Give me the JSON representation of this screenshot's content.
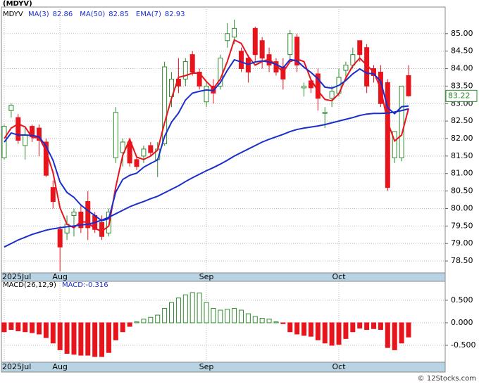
{
  "chart_data": [
    {
      "type": "candlestick",
      "title": "(MDYV)",
      "symbol": "MDYV",
      "categories": [
        "2025Jul",
        null,
        null,
        null,
        null,
        null,
        null,
        null,
        "Aug",
        null,
        null,
        null,
        null,
        null,
        null,
        null,
        null,
        null,
        null,
        null,
        null,
        null,
        null,
        null,
        null,
        null,
        null,
        null,
        null,
        "Sep",
        null,
        null,
        null,
        null,
        null,
        null,
        null,
        null,
        null,
        null,
        null,
        null,
        null,
        null,
        null,
        null,
        null,
        null,
        "Oct",
        null,
        null,
        null,
        null,
        null,
        null,
        null,
        null,
        null,
        null
      ],
      "open": [
        81.45,
        82.8,
        82.6,
        81.8,
        82.35,
        82.3,
        81.9,
        80.6,
        79.4,
        79.3,
        79.8,
        79.9,
        80.2,
        79.8,
        79.6,
        79.3,
        81.45,
        81.6,
        81.9,
        81.4,
        81.5,
        81.8,
        81.4,
        81.85,
        83.2,
        83.7,
        83.7,
        84.4,
        83.9,
        83.05,
        83.5,
        83.5,
        84.8,
        84.9,
        84.5,
        84.3,
        85.15,
        84.8,
        84.4,
        84.2,
        84.05,
        84.4,
        84.9,
        83.45,
        83.65,
        83.85,
        82.72,
        83.15,
        83.3,
        83.95,
        84.1,
        84.8,
        84.6,
        84.0,
        83.9,
        83.6,
        81.45,
        81.45,
        83.8
      ],
      "high": [
        82.4,
        83.0,
        82.7,
        82.3,
        82.4,
        82.4,
        82.0,
        80.8,
        79.5,
        79.8,
        80.0,
        80.1,
        80.5,
        79.9,
        79.8,
        80.0,
        82.9,
        82.0,
        82.0,
        81.5,
        81.8,
        81.9,
        81.9,
        84.2,
        83.9,
        84.3,
        84.3,
        84.5,
        84.0,
        83.6,
        83.7,
        84.4,
        85.3,
        85.4,
        84.6,
        84.4,
        85.2,
        84.9,
        84.6,
        84.3,
        84.3,
        85.1,
        85.0,
        83.6,
        83.7,
        84.0,
        82.9,
        83.5,
        84.0,
        84.2,
        84.6,
        84.8,
        84.7,
        84.1,
        84.1,
        83.7,
        82.2,
        83.5,
        84.1
      ],
      "low": [
        81.4,
        82.6,
        81.85,
        81.4,
        81.9,
        81.5,
        80.9,
        80.0,
        78.2,
        79.1,
        79.2,
        79.3,
        79.1,
        79.3,
        79.1,
        79.2,
        81.3,
        81.2,
        81.2,
        81.1,
        81.3,
        81.5,
        80.9,
        81.8,
        82.9,
        83.3,
        83.5,
        83.8,
        83.4,
        82.9,
        83.0,
        83.4,
        84.6,
        84.7,
        83.9,
        83.6,
        84.2,
        84.0,
        83.9,
        83.8,
        83.4,
        84.2,
        83.9,
        83.2,
        83.3,
        82.8,
        82.3,
        82.9,
        83.2,
        83.7,
        84.0,
        84.2,
        83.3,
        83.6,
        82.9,
        80.5,
        81.3,
        81.35,
        83.2
      ],
      "close": [
        82.35,
        82.95,
        81.95,
        82.1,
        82.05,
        81.95,
        80.95,
        80.2,
        78.9,
        79.55,
        79.9,
        79.45,
        79.45,
        79.4,
        79.2,
        79.9,
        82.75,
        81.9,
        81.3,
        81.2,
        81.7,
        81.6,
        81.7,
        84.05,
        83.7,
        83.5,
        84.2,
        83.9,
        83.5,
        83.5,
        83.3,
        84.3,
        85.0,
        85.15,
        84.0,
        83.9,
        84.4,
        84.3,
        84.1,
        83.9,
        83.7,
        85.0,
        84.1,
        83.5,
        83.45,
        83.15,
        82.75,
        83.35,
        83.75,
        84.1,
        84.4,
        84.4,
        83.5,
        83.8,
        83.0,
        80.6,
        82.2,
        83.5,
        83.22
      ],
      "up_color": "#2e8b2e",
      "down_color": "#e8141c",
      "series": [
        {
          "name": "MA(3)",
          "last": 82.86,
          "color": "#e8141c",
          "values": [
            82.0,
            82.3,
            82.42,
            82.33,
            82.03,
            82.03,
            81.65,
            81.03,
            80.02,
            79.55,
            79.45,
            79.63,
            79.6,
            79.43,
            79.35,
            79.5,
            80.62,
            81.52,
            81.98,
            81.47,
            81.4,
            81.5,
            81.67,
            82.45,
            83.15,
            83.75,
            83.8,
            83.87,
            83.87,
            83.63,
            83.43,
            83.7,
            84.2,
            84.82,
            84.72,
            84.35,
            84.1,
            84.2,
            84.27,
            84.1,
            83.9,
            84.2,
            84.27,
            84.2,
            83.68,
            83.37,
            83.12,
            83.08,
            83.28,
            83.73,
            84.08,
            84.3,
            84.1,
            83.9,
            83.43,
            82.47,
            81.93,
            82.1,
            82.86
          ]
        },
        {
          "name": "MA(50)",
          "last": 82.85,
          "color": "#1a2ecc",
          "values": [
            78.9,
            79.0,
            79.1,
            79.18,
            79.26,
            79.32,
            79.38,
            79.42,
            79.45,
            79.48,
            79.5,
            79.53,
            79.55,
            79.6,
            79.67,
            79.75,
            79.85,
            79.95,
            80.05,
            80.13,
            80.2,
            80.28,
            80.35,
            80.45,
            80.55,
            80.65,
            80.77,
            80.88,
            80.98,
            81.08,
            81.17,
            81.27,
            81.38,
            81.5,
            81.6,
            81.7,
            81.8,
            81.9,
            81.98,
            82.05,
            82.12,
            82.2,
            82.26,
            82.3,
            82.33,
            82.36,
            82.4,
            82.45,
            82.5,
            82.55,
            82.6,
            82.66,
            82.7,
            82.72,
            82.72,
            82.73,
            82.76,
            82.8,
            82.85
          ]
        },
        {
          "name": "EMA(7)",
          "last": 82.93,
          "color": "#1a2ecc",
          "values": [
            81.9,
            82.16,
            82.1,
            82.1,
            82.09,
            82.05,
            81.78,
            81.38,
            80.76,
            80.46,
            80.32,
            80.1,
            79.94,
            79.8,
            79.65,
            79.71,
            80.47,
            80.83,
            80.95,
            81.01,
            81.18,
            81.29,
            81.39,
            82.06,
            82.47,
            82.73,
            83.1,
            83.3,
            83.35,
            83.39,
            83.37,
            83.6,
            83.95,
            84.25,
            84.19,
            84.12,
            84.19,
            84.22,
            84.19,
            84.12,
            84.02,
            84.26,
            84.22,
            84.04,
            83.89,
            83.71,
            83.47,
            83.44,
            83.52,
            83.66,
            83.85,
            83.99,
            83.87,
            83.85,
            83.64,
            82.88,
            82.71,
            82.91,
            82.93
          ]
        }
      ],
      "last_price": 83.22,
      "ylim": [
        78.16,
        85.76
      ],
      "yticks": [
        {
          "value": 78.5,
          "label": "78.50"
        },
        {
          "value": 79,
          "label": "79.00"
        },
        {
          "value": 79.5,
          "label": "79.50"
        },
        {
          "value": 80,
          "label": "80.00"
        },
        {
          "value": 80.5,
          "label": "80.50"
        },
        {
          "value": 81,
          "label": "81.00"
        },
        {
          "value": 81.5,
          "label": "81.50"
        },
        {
          "value": 82,
          "label": "82.00"
        },
        {
          "value": 82.5,
          "label": "82.50"
        },
        {
          "value": 83,
          "label": "83.00"
        },
        {
          "value": 83.5,
          "label": "83.50"
        },
        {
          "value": 84,
          "label": "84.00"
        },
        {
          "value": 84.5,
          "label": "84.50"
        },
        {
          "value": 85,
          "label": "85.00"
        }
      ],
      "grid": true
    },
    {
      "type": "histogram",
      "title": "MACD(26,12,9)",
      "legend": "MACD:-0.316",
      "values": [
        -0.2,
        -0.15,
        -0.18,
        -0.2,
        -0.22,
        -0.25,
        -0.33,
        -0.45,
        -0.6,
        -0.68,
        -0.7,
        -0.72,
        -0.72,
        -0.75,
        -0.75,
        -0.66,
        -0.38,
        -0.2,
        -0.08,
        0.02,
        0.08,
        0.12,
        0.17,
        0.32,
        0.45,
        0.55,
        0.62,
        0.67,
        0.66,
        0.45,
        0.32,
        0.28,
        0.3,
        0.32,
        0.28,
        0.2,
        0.14,
        0.1,
        0.08,
        0.02,
        -0.02,
        -0.2,
        -0.25,
        -0.28,
        -0.3,
        -0.38,
        -0.45,
        -0.5,
        -0.48,
        -0.35,
        -0.2,
        -0.12,
        -0.15,
        -0.13,
        -0.15,
        -0.55,
        -0.6,
        -0.45,
        -0.316
      ],
      "up_color": "#2e8b2e",
      "down_color": "#e8141c",
      "ylim": [
        -0.875,
        0.92
      ],
      "yticks": [
        {
          "value": 0.5,
          "label": "0.500"
        },
        {
          "value": 0,
          "label": "0.000"
        },
        {
          "value": -0.5,
          "label": "-0.500"
        }
      ],
      "grid": true
    }
  ],
  "footer": "© 12Stocks.com"
}
